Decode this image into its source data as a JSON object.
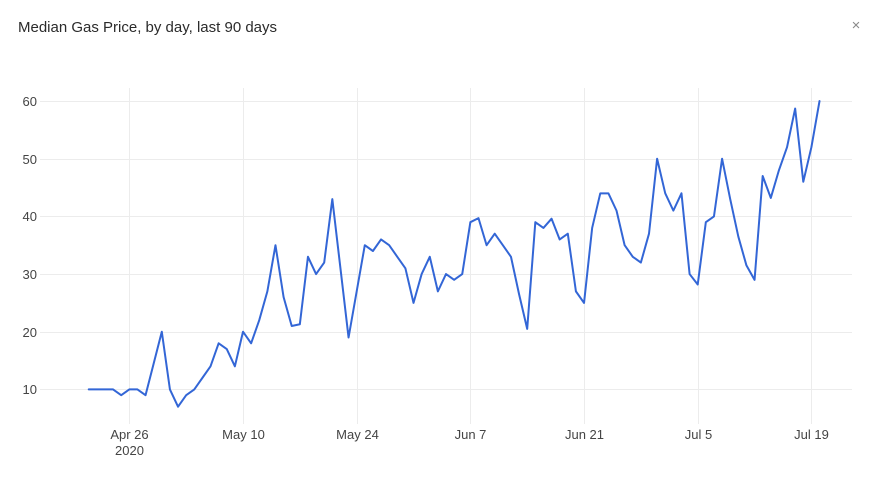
{
  "panel": {
    "title": "Median Gas Price, by day, last 90 days",
    "close_glyph": "×",
    "close_icon": "close-icon"
  },
  "chart_data": {
    "type": "line",
    "title": "Median Gas Price, by day, last 90 days",
    "xlabel": "",
    "ylabel": "",
    "x_start": "2020-04-21",
    "x_end": "2020-07-20",
    "xlim": [
      "2020-04-15",
      "2020-07-24"
    ],
    "ylim": [
      4,
      64
    ],
    "grid": true,
    "legend": "none",
    "y_ticks": [
      10,
      20,
      30,
      40,
      50,
      60
    ],
    "x_ticks": [
      {
        "date": "2020-04-26",
        "label": "Apr 26",
        "sublabel": "2020"
      },
      {
        "date": "2020-05-10",
        "label": "May 10",
        "sublabel": ""
      },
      {
        "date": "2020-05-24",
        "label": "May 24",
        "sublabel": ""
      },
      {
        "date": "2020-06-07",
        "label": "Jun 7",
        "sublabel": ""
      },
      {
        "date": "2020-06-21",
        "label": "Jun 21",
        "sublabel": ""
      },
      {
        "date": "2020-07-05",
        "label": "Jul 5",
        "sublabel": ""
      },
      {
        "date": "2020-07-19",
        "label": "Jul 19",
        "sublabel": ""
      }
    ],
    "colors": {
      "line": "#3366d6",
      "grid": "#ececec"
    },
    "series": [
      {
        "values": [
          10,
          10,
          10,
          10,
          9,
          10,
          10,
          9,
          14.5,
          20,
          10,
          7,
          9,
          10,
          12,
          14,
          18,
          17,
          14,
          20,
          18,
          22,
          27,
          35,
          26,
          21,
          21.3,
          33,
          30,
          32,
          43,
          31,
          19,
          27,
          35,
          34,
          36,
          35,
          33,
          31,
          25,
          30,
          33,
          27,
          30,
          29,
          30,
          39,
          39.7,
          35,
          37,
          35,
          33,
          26.5,
          20.5,
          39,
          38,
          39.6,
          36,
          37,
          27,
          25,
          38,
          44,
          44,
          41,
          35,
          33,
          32,
          37,
          50,
          44,
          41,
          44,
          30,
          28.2,
          39,
          40,
          50,
          43,
          36.5,
          31.5,
          29,
          47,
          43.2,
          48,
          52,
          58.7,
          46,
          52,
          60
        ]
      }
    ]
  }
}
